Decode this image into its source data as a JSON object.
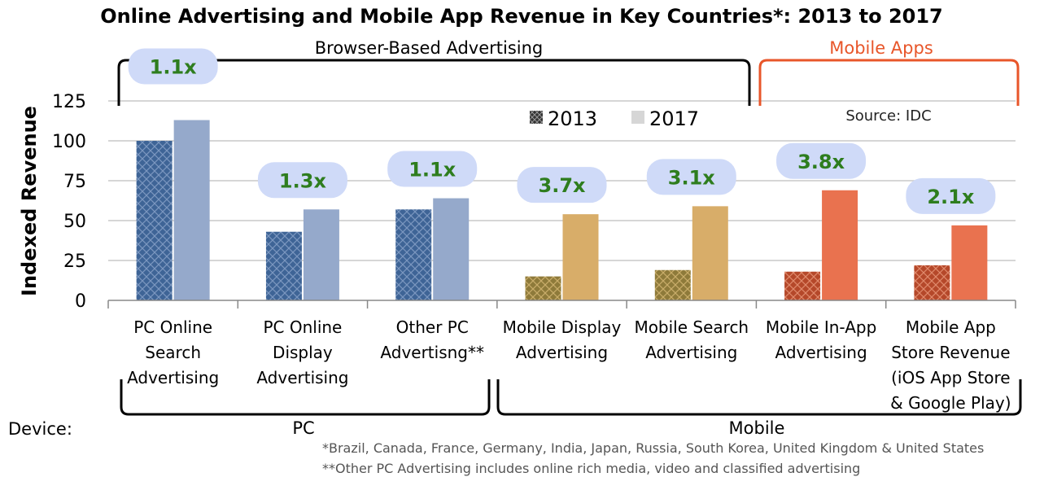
{
  "chart_data": {
    "type": "bar",
    "title": "Online Advertising and Mobile App Revenue in Key Countries*: 2013 to 2017",
    "ylabel": "Indexed Revenue",
    "ylim": [
      0,
      125
    ],
    "yticks": [
      "0",
      "25",
      "50",
      "75",
      "100",
      "125"
    ],
    "grid": true,
    "legend_position": "top-center",
    "categories": [
      {
        "lines": [
          "PC Online",
          "Search",
          "Advertising"
        ]
      },
      {
        "lines": [
          "PC Online",
          "Display",
          "Advertising"
        ]
      },
      {
        "lines": [
          "Other PC",
          "Advertisng**"
        ]
      },
      {
        "lines": [
          "Mobile Display",
          "Advertising"
        ]
      },
      {
        "lines": [
          "Mobile Search",
          "Advertising"
        ]
      },
      {
        "lines": [
          "Mobile In-App",
          "Advertising"
        ]
      },
      {
        "lines": [
          "Mobile App",
          "Store Revenue",
          "(iOS App Store",
          "& Google Play)"
        ]
      }
    ],
    "series": [
      {
        "name": "2013",
        "values": [
          100,
          43,
          57,
          15,
          19,
          18,
          22
        ]
      },
      {
        "name": "2017",
        "values": [
          113,
          57,
          64,
          54,
          59,
          69,
          47
        ]
      }
    ],
    "multipliers": [
      "1.1x",
      "1.3x",
      "1.1x",
      "3.7x",
      "3.1x",
      "3.8x",
      "2.1x"
    ],
    "colors": {
      "blue_2013": "#3e6496",
      "blue_2017": "#95a9cb",
      "gold_2013": "#8e7a3a",
      "gold_2017": "#d8ad69",
      "orange_2013": "#b5482a",
      "orange_2017": "#e9724f",
      "multiplier_bubble": "#cfdaf8",
      "multiplier_text": "#2e7d1e",
      "mobile_apps_bracket": "#e8562a"
    },
    "groups": [
      {
        "label": "Browser-Based  Advertising"
      },
      {
        "label": "Mobile Apps"
      }
    ],
    "source": "Source: IDC"
  },
  "device": {
    "label": "Device:",
    "pc": "PC",
    "mobile": "Mobile"
  },
  "footnotes": [
    "*Brazil, Canada, France, Germany, India, Japan, Russia, South Korea, United  Kingdom & United States",
    "**Other PC Advertising includes online rich media, video and classified advertising"
  ]
}
